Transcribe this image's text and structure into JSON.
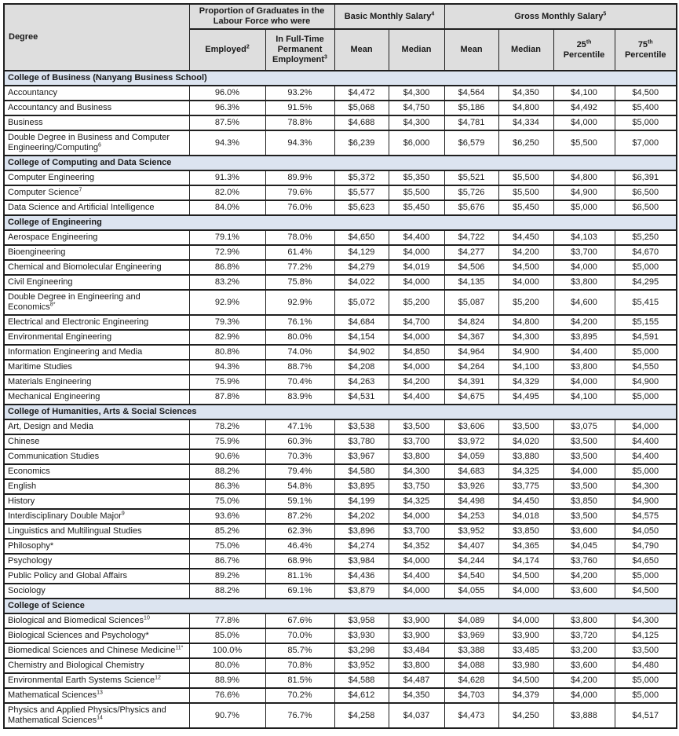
{
  "colors": {
    "header_bg": "#dedede",
    "section_bg": "#dce4f0",
    "border": "#1f1f1f",
    "row_bg": "#ffffff",
    "text": "#1a1a1a"
  },
  "table": {
    "header": {
      "degree": "Degree",
      "group_labour": {
        "label": "Proportion of Graduates in the Labour Force who were",
        "sup": ""
      },
      "col_employed": {
        "label": "Employed",
        "sup": "2"
      },
      "col_fulltime": {
        "label": "In Full-Time Permanent Employment",
        "sup": "3"
      },
      "group_basic": {
        "label": "Basic Monthly Salary",
        "sup": "4"
      },
      "group_gross": {
        "label": "Gross Monthly Salary",
        "sup": "5"
      },
      "basic_mean": "Mean",
      "basic_median": "Median",
      "gross_mean": "Mean",
      "gross_median": "Median",
      "p25": {
        "num": "25",
        "sup": "th",
        "word": "Percentile"
      },
      "p75": {
        "num": "75",
        "sup": "th",
        "word": "Percentile"
      }
    },
    "sections": [
      {
        "title": "College of Business (Nanyang Business School)",
        "rows": [
          {
            "degree": "Accountancy",
            "sup": "",
            "values": [
              "96.0%",
              "93.2%",
              "$4,472",
              "$4,300",
              "$4,564",
              "$4,350",
              "$4,100",
              "$4,500"
            ]
          },
          {
            "degree": "Accountancy and Business",
            "sup": "",
            "values": [
              "96.3%",
              "91.5%",
              "$5,068",
              "$4,750",
              "$5,186",
              "$4,800",
              "$4,492",
              "$5,400"
            ]
          },
          {
            "degree": "Business",
            "sup": "",
            "values": [
              "87.5%",
              "78.8%",
              "$4,688",
              "$4,300",
              "$4,781",
              "$4,334",
              "$4,000",
              "$5,000"
            ]
          },
          {
            "degree": "Double Degree in Business and Computer Engineering/Computing",
            "sup": "6",
            "values": [
              "94.3%",
              "94.3%",
              "$6,239",
              "$6,000",
              "$6,579",
              "$6,250",
              "$5,500",
              "$7,000"
            ]
          }
        ]
      },
      {
        "title": "College of Computing and Data Science",
        "rows": [
          {
            "degree": "Computer Engineering",
            "sup": "",
            "values": [
              "91.3%",
              "89.9%",
              "$5,372",
              "$5,350",
              "$5,521",
              "$5,500",
              "$4,800",
              "$6,391"
            ]
          },
          {
            "degree": "Computer Science",
            "sup": "7",
            "values": [
              "82.0%",
              "79.6%",
              "$5,577",
              "$5,500",
              "$5,726",
              "$5,500",
              "$4,900",
              "$6,500"
            ]
          },
          {
            "degree": "Data Science and Artificial Intelligence",
            "sup": "",
            "values": [
              "84.0%",
              "76.0%",
              "$5,623",
              "$5,450",
              "$5,676",
              "$5,450",
              "$5,000",
              "$6,500"
            ]
          }
        ]
      },
      {
        "title": "College of Engineering",
        "rows": [
          {
            "degree": "Aerospace Engineering",
            "sup": "",
            "values": [
              "79.1%",
              "78.0%",
              "$4,650",
              "$4,400",
              "$4,722",
              "$4,450",
              "$4,103",
              "$5,250"
            ]
          },
          {
            "degree": "Bioengineering",
            "sup": "",
            "values": [
              "72.9%",
              "61.4%",
              "$4,129",
              "$4,000",
              "$4,277",
              "$4,200",
              "$3,700",
              "$4,670"
            ]
          },
          {
            "degree": "Chemical and Biomolecular Engineering",
            "sup": "",
            "values": [
              "86.8%",
              "77.2%",
              "$4,279",
              "$4,019",
              "$4,506",
              "$4,500",
              "$4,000",
              "$5,000"
            ]
          },
          {
            "degree": "Civil Engineering",
            "sup": "",
            "values": [
              "83.2%",
              "75.8%",
              "$4,022",
              "$4,000",
              "$4,135",
              "$4,000",
              "$3,800",
              "$4,295"
            ]
          },
          {
            "degree": "Double Degree in Engineering and Economics",
            "sup": "8*",
            "values": [
              "92.9%",
              "92.9%",
              "$5,072",
              "$5,200",
              "$5,087",
              "$5,200",
              "$4,600",
              "$5,415"
            ]
          },
          {
            "degree": "Electrical and Electronic Engineering",
            "sup": "",
            "values": [
              "79.3%",
              "76.1%",
              "$4,684",
              "$4,700",
              "$4,824",
              "$4,800",
              "$4,200",
              "$5,155"
            ]
          },
          {
            "degree": "Environmental Engineering",
            "sup": "",
            "values": [
              "82.9%",
              "80.0%",
              "$4,154",
              "$4,000",
              "$4,367",
              "$4,300",
              "$3,895",
              "$4,591"
            ]
          },
          {
            "degree": "Information Engineering and Media",
            "sup": "",
            "values": [
              "80.8%",
              "74.0%",
              "$4,902",
              "$4,850",
              "$4,964",
              "$4,900",
              "$4,400",
              "$5,000"
            ]
          },
          {
            "degree": "Maritime Studies",
            "sup": "",
            "values": [
              "94.3%",
              "88.7%",
              "$4,208",
              "$4,000",
              "$4,264",
              "$4,100",
              "$3,800",
              "$4,550"
            ]
          },
          {
            "degree": "Materials Engineering",
            "sup": "",
            "values": [
              "75.9%",
              "70.4%",
              "$4,263",
              "$4,200",
              "$4,391",
              "$4,329",
              "$4,000",
              "$4,900"
            ]
          },
          {
            "degree": "Mechanical Engineering",
            "sup": "",
            "values": [
              "87.8%",
              "83.9%",
              "$4,531",
              "$4,400",
              "$4,675",
              "$4,495",
              "$4,100",
              "$5,000"
            ]
          }
        ]
      },
      {
        "title": "College of Humanities, Arts & Social Sciences",
        "rows": [
          {
            "degree": "Art, Design and Media",
            "sup": "",
            "values": [
              "78.2%",
              "47.1%",
              "$3,538",
              "$3,500",
              "$3,606",
              "$3,500",
              "$3,075",
              "$4,000"
            ]
          },
          {
            "degree": "Chinese",
            "sup": "",
            "values": [
              "75.9%",
              "60.3%",
              "$3,780",
              "$3,700",
              "$3,972",
              "$4,020",
              "$3,500",
              "$4,400"
            ]
          },
          {
            "degree": "Communication Studies",
            "sup": "",
            "values": [
              "90.6%",
              "70.3%",
              "$3,967",
              "$3,800",
              "$4,059",
              "$3,880",
              "$3,500",
              "$4,400"
            ]
          },
          {
            "degree": "Economics",
            "sup": "",
            "values": [
              "88.2%",
              "79.4%",
              "$4,580",
              "$4,300",
              "$4,683",
              "$4,325",
              "$4,000",
              "$5,000"
            ]
          },
          {
            "degree": "English",
            "sup": "",
            "values": [
              "86.3%",
              "54.8%",
              "$3,895",
              "$3,750",
              "$3,926",
              "$3,775",
              "$3,500",
              "$4,300"
            ]
          },
          {
            "degree": "History",
            "sup": "",
            "values": [
              "75.0%",
              "59.1%",
              "$4,199",
              "$4,325",
              "$4,498",
              "$4,450",
              "$3,850",
              "$4,900"
            ]
          },
          {
            "degree": "Interdisciplinary Double Major",
            "sup": "9",
            "values": [
              "93.6%",
              "87.2%",
              "$4,202",
              "$4,000",
              "$4,253",
              "$4,018",
              "$3,500",
              "$4,575"
            ]
          },
          {
            "degree": "Linguistics and Multilingual Studies",
            "sup": "",
            "values": [
              "85.2%",
              "62.3%",
              "$3,896",
              "$3,700",
              "$3,952",
              "$3,850",
              "$3,600",
              "$4,050"
            ]
          },
          {
            "degree": "Philosophy*",
            "sup": "",
            "values": [
              "75.0%",
              "46.4%",
              "$4,274",
              "$4,352",
              "$4,407",
              "$4,365",
              "$4,045",
              "$4,790"
            ]
          },
          {
            "degree": "Psychology",
            "sup": "",
            "values": [
              "86.7%",
              "68.9%",
              "$3,984",
              "$4,000",
              "$4,244",
              "$4,174",
              "$3,760",
              "$4,650"
            ]
          },
          {
            "degree": "Public Policy and Global Affairs",
            "sup": "",
            "values": [
              "89.2%",
              "81.1%",
              "$4,436",
              "$4,400",
              "$4,540",
              "$4,500",
              "$4,200",
              "$5,000"
            ]
          },
          {
            "degree": "Sociology",
            "sup": "",
            "values": [
              "88.2%",
              "69.1%",
              "$3,879",
              "$4,000",
              "$4,055",
              "$4,000",
              "$3,600",
              "$4,500"
            ]
          }
        ]
      },
      {
        "title": "College of Science",
        "rows": [
          {
            "degree": "Biological and Biomedical Sciences",
            "sup": "10",
            "values": [
              "77.8%",
              "67.6%",
              "$3,958",
              "$3,900",
              "$4,089",
              "$4,000",
              "$3,800",
              "$4,300"
            ]
          },
          {
            "degree": "Biological Sciences and Psychology*",
            "sup": "",
            "values": [
              "85.0%",
              "70.0%",
              "$3,930",
              "$3,900",
              "$3,969",
              "$3,900",
              "$3,720",
              "$4,125"
            ]
          },
          {
            "degree": "Biomedical Sciences and Chinese Medicine",
            "sup": "11*",
            "values": [
              "100.0%",
              "85.7%",
              "$3,298",
              "$3,484",
              "$3,388",
              "$3,485",
              "$3,200",
              "$3,500"
            ]
          },
          {
            "degree": "Chemistry and Biological Chemistry",
            "sup": "",
            "values": [
              "80.0%",
              "70.8%",
              "$3,952",
              "$3,800",
              "$4,088",
              "$3,980",
              "$3,600",
              "$4,480"
            ]
          },
          {
            "degree": "Environmental Earth Systems Science",
            "sup": "12",
            "values": [
              "88.9%",
              "81.5%",
              "$4,588",
              "$4,487",
              "$4,628",
              "$4,500",
              "$4,200",
              "$5,000"
            ]
          },
          {
            "degree": "Mathematical Sciences",
            "sup": "13",
            "values": [
              "76.6%",
              "70.2%",
              "$4,612",
              "$4,350",
              "$4,703",
              "$4,379",
              "$4,000",
              "$5,000"
            ]
          },
          {
            "degree": "Physics and Applied Physics/Physics and Mathematical Sciences",
            "sup": "14",
            "values": [
              "90.7%",
              "76.7%",
              "$4,258",
              "$4,037",
              "$4,473",
              "$4,250",
              "$3,888",
              "$4,517"
            ]
          }
        ]
      }
    ]
  }
}
